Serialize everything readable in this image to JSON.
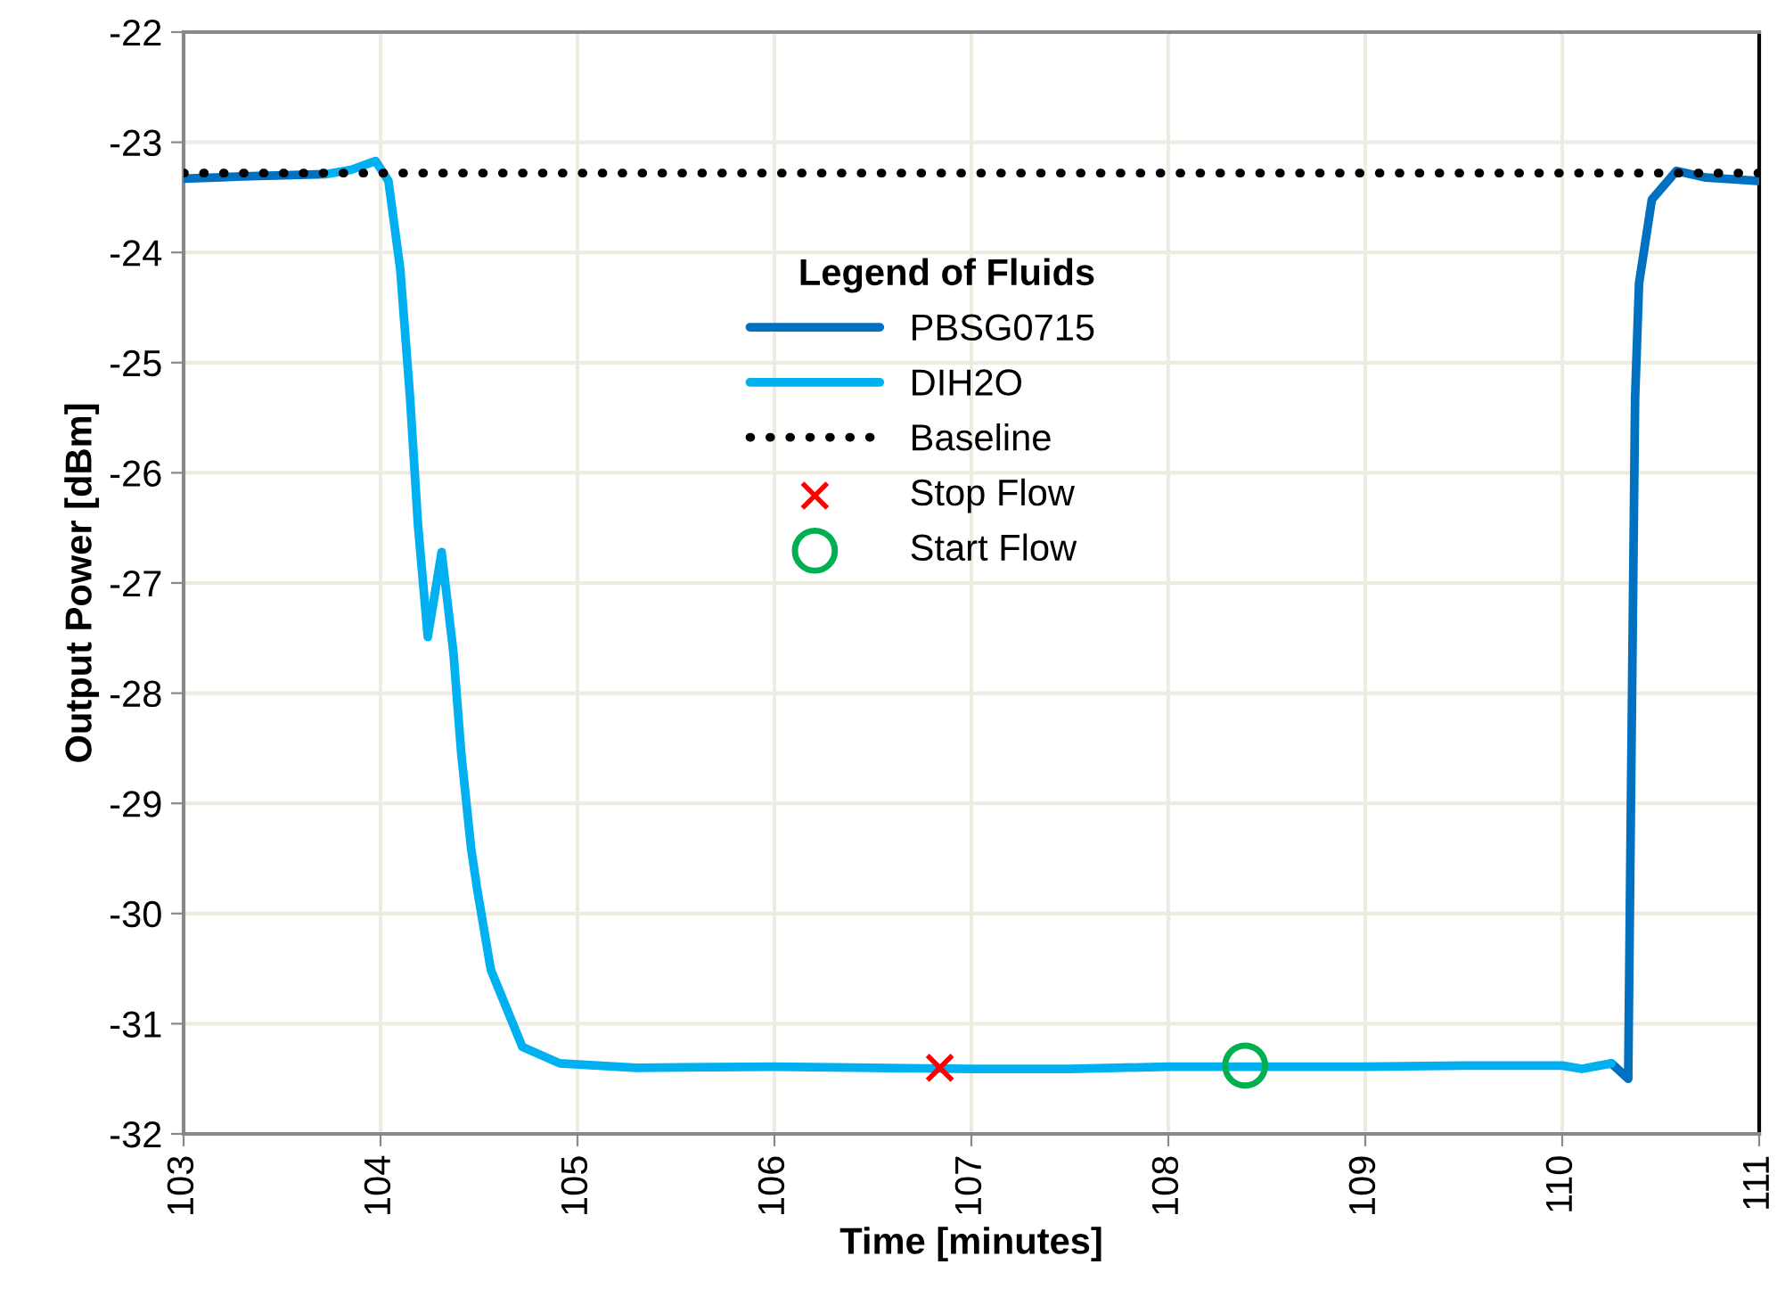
{
  "chart_data": {
    "type": "line",
    "xlabel": "Time [minutes]",
    "ylabel": "Output Power [dBm]",
    "legend_title": "Legend of Fluids",
    "xlim": [
      103,
      111
    ],
    "xticks": [
      103,
      104,
      105,
      106,
      107,
      108,
      109,
      110,
      111
    ],
    "ylim": [
      -32,
      -22
    ],
    "yticks": [
      -32,
      -31,
      -30,
      -29,
      -28,
      -27,
      -26,
      -25,
      -24,
      -23,
      -22
    ],
    "grid": true,
    "legend": "top",
    "line_style": "solid",
    "marker": "none",
    "series": [
      {
        "name": "PBSG0715",
        "color": "#0070c0",
        "x": [
          103,
          103.3,
          103.72,
          107,
          110.25,
          110.335,
          110.35,
          110.37,
          110.39,
          110.455,
          110.58,
          110.73,
          110.99,
          111
        ],
        "values": [
          -23.33,
          -23.31,
          -23.29,
          null,
          -31.36,
          -31.5,
          -28.78,
          -25.32,
          -24.28,
          -23.52,
          -23.26,
          -23.32,
          -23.35,
          -23.35
        ]
      },
      {
        "name": "DIH2O",
        "color": "#00b0f0",
        "x": [
          103.72,
          103.85,
          103.975,
          104.04,
          104.1,
          104.15,
          104.19,
          104.24,
          104.31,
          104.37,
          104.41,
          104.46,
          104.49,
          104.56,
          104.72,
          104.91,
          105.3,
          106,
          106.5,
          107,
          107.5,
          108,
          108.5,
          109,
          109.5,
          110,
          110.1,
          110.25
        ],
        "values": [
          -23.29,
          -23.25,
          -23.17,
          -23.35,
          -24.15,
          -25.32,
          -26.47,
          -27.49,
          -26.72,
          -27.63,
          -28.55,
          -29.41,
          -29.77,
          -30.51,
          -31.21,
          -31.36,
          -31.4,
          -31.39,
          -31.4,
          -31.41,
          -31.41,
          -31.39,
          -31.39,
          -31.39,
          -31.38,
          -31.38,
          -31.41,
          -31.36
        ]
      },
      {
        "name": "Baseline",
        "type": "line",
        "color": "#000000",
        "line_style": "dotted",
        "x": [
          103,
          111
        ],
        "values": [
          -23.28,
          -23.28
        ]
      },
      {
        "name": "Stop Flow",
        "type": "scatter",
        "color": "#ff0000",
        "marker": "cross",
        "x": [
          106.84
        ],
        "values": [
          -31.4
        ]
      },
      {
        "name": "Start Flow",
        "type": "scatter",
        "color": "#00b050",
        "marker": "circle",
        "x": [
          108.39
        ],
        "values": [
          -31.38
        ]
      }
    ]
  }
}
